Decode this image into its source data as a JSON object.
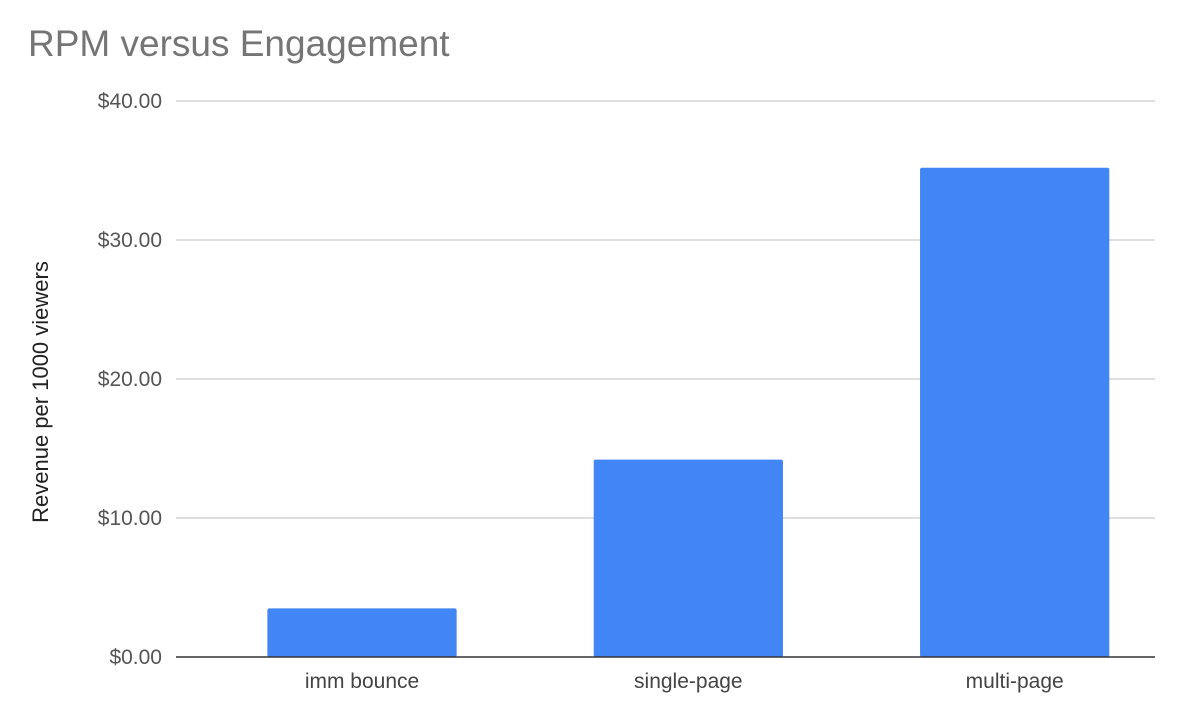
{
  "chart_data": {
    "type": "bar",
    "title": "RPM versus Engagement",
    "xlabel": "",
    "ylabel": "Revenue per 1000 viewers",
    "categories": [
      "imm bounce",
      "single-page",
      "multi-page"
    ],
    "values": [
      3.5,
      14.2,
      35.2
    ],
    "ylim": [
      0,
      40
    ],
    "yticks": [
      0,
      10,
      20,
      30,
      40
    ],
    "ytick_labels": [
      "$0.00",
      "$10.00",
      "$20.00",
      "$30.00",
      "$40.00"
    ],
    "grid": true,
    "legend": "none",
    "colors": {
      "bar": "#4285f4",
      "grid": "#cccccc",
      "axis": "#333333",
      "title": "#757575",
      "text": "#555555"
    }
  }
}
